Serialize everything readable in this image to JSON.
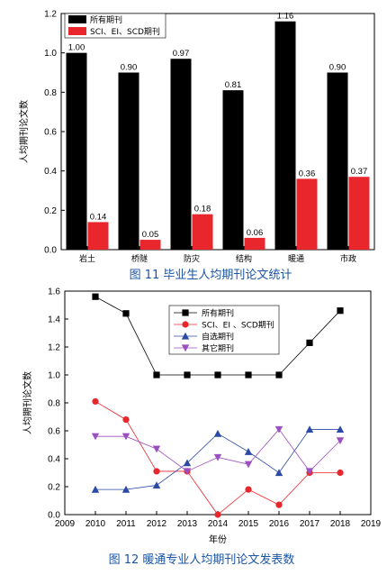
{
  "chart_data": [
    {
      "type": "bar",
      "ylabel": "人均期刊论文数",
      "ylim": [
        0,
        1.2
      ],
      "yticks": [
        "0.0",
        "0.2",
        "0.4",
        "0.6",
        "0.8",
        "1.0",
        "1.2"
      ],
      "categories": [
        "岩土",
        "桥隧",
        "防灾",
        "结构",
        "暖通",
        "市政"
      ],
      "legend_position": "top-left",
      "series": [
        {
          "name": "所有期刊",
          "color": "#000000",
          "values": [
            1.0,
            0.9,
            0.97,
            0.81,
            1.16,
            0.9
          ],
          "labels": [
            "1.00",
            "0.90",
            "0.97",
            "0.81",
            "1.16",
            "0.90"
          ]
        },
        {
          "name": "SCI、EI、SCD期刊",
          "color": "#e8262b",
          "values": [
            0.14,
            0.05,
            0.18,
            0.06,
            0.36,
            0.37
          ],
          "labels": [
            "0.14",
            "0.05",
            "0.18",
            "0.06",
            "0.36",
            "0.37"
          ]
        }
      ],
      "caption": "图 11 毕业生人均期刊论文统计"
    },
    {
      "type": "line",
      "xlabel": "年份",
      "ylabel": "人均期刊论文数",
      "xlim": [
        2009,
        2019
      ],
      "ylim": [
        0,
        1.6
      ],
      "xticks": [
        "2009",
        "2010",
        "2011",
        "2012",
        "2013",
        "2014",
        "2015",
        "2016",
        "2017",
        "2018",
        "2019"
      ],
      "yticks": [
        "0.0",
        "0.2",
        "0.4",
        "0.6",
        "0.8",
        "1.0",
        "1.2",
        "1.4",
        "1.6"
      ],
      "x": [
        2010,
        2011,
        2012,
        2013,
        2014,
        2015,
        2016,
        2017,
        2018
      ],
      "legend_position": "top-center",
      "series": [
        {
          "name": "所有期刊",
          "color": "#000000",
          "marker": "square",
          "values": [
            1.56,
            1.44,
            1.0,
            1.0,
            1.0,
            1.0,
            1.0,
            1.23,
            1.46
          ]
        },
        {
          "name": "SCI、EI 、SCD期刊",
          "color": "#e8262b",
          "marker": "circle",
          "values": [
            0.81,
            0.68,
            0.31,
            0.31,
            0.0,
            0.18,
            0.07,
            0.3,
            0.3
          ]
        },
        {
          "name": "自选期刊",
          "color": "#2b4aa6",
          "marker": "triangle-up",
          "values": [
            0.18,
            0.18,
            0.21,
            0.37,
            0.58,
            0.45,
            0.3,
            0.61,
            0.61
          ]
        },
        {
          "name": "其它期刊",
          "color": "#9b4fc0",
          "marker": "triangle-down",
          "values": [
            0.56,
            0.56,
            0.47,
            0.31,
            0.41,
            0.36,
            0.61,
            0.31,
            0.53
          ]
        }
      ],
      "caption": "图 12 暖通专业人均期刊论文发表数"
    }
  ]
}
